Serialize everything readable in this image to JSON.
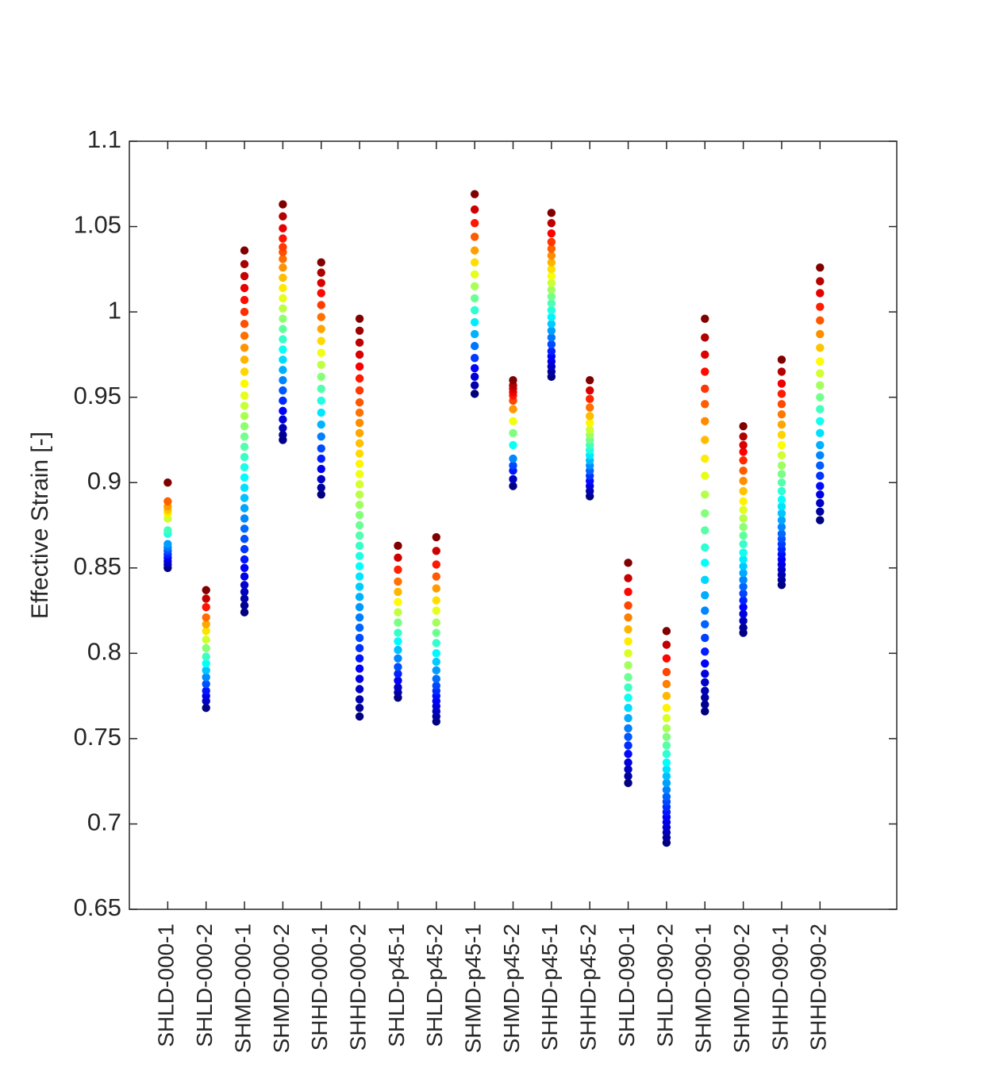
{
  "chart_data": {
    "type": "strip",
    "y_label": "Effective Strain [-]",
    "colormap": "jet",
    "categories": [
      "SHLD-000-1",
      "SHLD-000-2",
      "SHMD-000-1",
      "SHMD-000-2",
      "SHHD-000-1",
      "SHHD-000-2",
      "SHLD-p45-1",
      "SHLD-p45-2",
      "SHMD-p45-1",
      "SHMD-p45-2",
      "SHHD-p45-1",
      "SHHD-p45-2",
      "SHLD-090-1",
      "SHLD-090-2",
      "SHMD-090-1",
      "SHMD-090-2",
      "SHHD-090-1",
      "SHHD-090-2"
    ],
    "values": [
      [
        0.85,
        0.852,
        0.854,
        0.856,
        0.858,
        0.86,
        0.862,
        0.864,
        0.87,
        0.872,
        0.879,
        0.882,
        0.884,
        0.886,
        0.889,
        0.9
      ],
      [
        0.768,
        0.772,
        0.775,
        0.778,
        0.782,
        0.786,
        0.79,
        0.794,
        0.798,
        0.803,
        0.808,
        0.813,
        0.817,
        0.821,
        0.827,
        0.832,
        0.837
      ],
      [
        0.824,
        0.828,
        0.832,
        0.836,
        0.84,
        0.845,
        0.85,
        0.855,
        0.861,
        0.867,
        0.873,
        0.879,
        0.885,
        0.891,
        0.897,
        0.903,
        0.909,
        0.915,
        0.921,
        0.927,
        0.933,
        0.939,
        0.945,
        0.951,
        0.958,
        0.965,
        0.972,
        0.979,
        0.986,
        0.993,
        1.0,
        1.007,
        1.014,
        1.021,
        1.028,
        1.036
      ],
      [
        0.925,
        0.928,
        0.932,
        0.937,
        0.942,
        0.948,
        0.954,
        0.96,
        0.966,
        0.972,
        0.978,
        0.984,
        0.99,
        0.996,
        1.002,
        1.008,
        1.014,
        1.02,
        1.026,
        1.031,
        1.035,
        1.038,
        1.043,
        1.049,
        1.056,
        1.063
      ],
      [
        0.893,
        0.897,
        0.902,
        0.908,
        0.914,
        0.92,
        0.927,
        0.934,
        0.941,
        0.948,
        0.955,
        0.962,
        0.969,
        0.976,
        0.983,
        0.99,
        0.997,
        1.004,
        1.011,
        1.017,
        1.023,
        1.029
      ],
      [
        0.763,
        0.768,
        0.773,
        0.779,
        0.785,
        0.791,
        0.797,
        0.803,
        0.809,
        0.815,
        0.821,
        0.827,
        0.833,
        0.839,
        0.845,
        0.851,
        0.857,
        0.863,
        0.869,
        0.875,
        0.881,
        0.887,
        0.893,
        0.899,
        0.905,
        0.911,
        0.917,
        0.923,
        0.929,
        0.935,
        0.941,
        0.947,
        0.954,
        0.961,
        0.968,
        0.975,
        0.982,
        0.989,
        0.996
      ],
      [
        0.774,
        0.777,
        0.78,
        0.784,
        0.788,
        0.792,
        0.797,
        0.802,
        0.807,
        0.812,
        0.818,
        0.824,
        0.83,
        0.836,
        0.842,
        0.849,
        0.856,
        0.863
      ],
      [
        0.76,
        0.763,
        0.766,
        0.769,
        0.772,
        0.775,
        0.778,
        0.781,
        0.785,
        0.79,
        0.795,
        0.8,
        0.806,
        0.812,
        0.818,
        0.825,
        0.831,
        0.838,
        0.845,
        0.852,
        0.86,
        0.868
      ],
      [
        0.952,
        0.957,
        0.962,
        0.967,
        0.973,
        0.98,
        0.987,
        0.994,
        1.001,
        1.008,
        1.015,
        1.022,
        1.029,
        1.036,
        1.044,
        1.052,
        1.06,
        1.069
      ],
      [
        0.898,
        0.902,
        0.907,
        0.91,
        0.914,
        0.922,
        0.929,
        0.936,
        0.943,
        0.948,
        0.951,
        0.953,
        0.955,
        0.957,
        0.96
      ],
      [
        0.962,
        0.965,
        0.968,
        0.971,
        0.974,
        0.977,
        0.981,
        0.985,
        0.989,
        0.993,
        0.997,
        1.001,
        1.005,
        1.009,
        1.013,
        1.017,
        1.021,
        1.025,
        1.029,
        1.033,
        1.037,
        1.041,
        1.046,
        1.052,
        1.058
      ],
      [
        0.892,
        0.895,
        0.898,
        0.901,
        0.904,
        0.907,
        0.91,
        0.913,
        0.916,
        0.919,
        0.922,
        0.925,
        0.928,
        0.931,
        0.935,
        0.939,
        0.944,
        0.949,
        0.954,
        0.96
      ],
      [
        0.724,
        0.728,
        0.732,
        0.736,
        0.741,
        0.746,
        0.751,
        0.756,
        0.762,
        0.768,
        0.774,
        0.78,
        0.786,
        0.793,
        0.8,
        0.807,
        0.814,
        0.821,
        0.828,
        0.836,
        0.844,
        0.853
      ],
      [
        0.689,
        0.692,
        0.695,
        0.698,
        0.701,
        0.704,
        0.707,
        0.71,
        0.713,
        0.716,
        0.72,
        0.724,
        0.728,
        0.732,
        0.736,
        0.741,
        0.746,
        0.751,
        0.756,
        0.762,
        0.768,
        0.775,
        0.782,
        0.789,
        0.797,
        0.805,
        0.813
      ],
      [
        0.766,
        0.77,
        0.774,
        0.778,
        0.783,
        0.788,
        0.794,
        0.801,
        0.809,
        0.817,
        0.825,
        0.834,
        0.843,
        0.853,
        0.862,
        0.872,
        0.882,
        0.893,
        0.904,
        0.914,
        0.925,
        0.936,
        0.946,
        0.955,
        0.965,
        0.975,
        0.985,
        0.996
      ],
      [
        0.812,
        0.815,
        0.819,
        0.823,
        0.827,
        0.831,
        0.835,
        0.839,
        0.843,
        0.847,
        0.851,
        0.855,
        0.859,
        0.864,
        0.869,
        0.874,
        0.879,
        0.884,
        0.889,
        0.895,
        0.901,
        0.907,
        0.913,
        0.918,
        0.922,
        0.927,
        0.933
      ],
      [
        0.84,
        0.843,
        0.846,
        0.849,
        0.852,
        0.855,
        0.858,
        0.861,
        0.864,
        0.867,
        0.87,
        0.874,
        0.878,
        0.882,
        0.886,
        0.89,
        0.895,
        0.9,
        0.905,
        0.91,
        0.916,
        0.922,
        0.928,
        0.934,
        0.94,
        0.946,
        0.952,
        0.958,
        0.965,
        0.972
      ],
      [
        0.878,
        0.883,
        0.888,
        0.893,
        0.898,
        0.904,
        0.91,
        0.916,
        0.922,
        0.929,
        0.936,
        0.943,
        0.95,
        0.957,
        0.964,
        0.971,
        0.979,
        0.987,
        0.995,
        1.003,
        1.011,
        1.018,
        1.026
      ]
    ],
    "ylim": [
      0.65,
      1.1
    ],
    "yticks": [
      0.65,
      0.7,
      0.75,
      0.8,
      0.85,
      0.9,
      0.95,
      1,
      1.05,
      1.1
    ]
  }
}
